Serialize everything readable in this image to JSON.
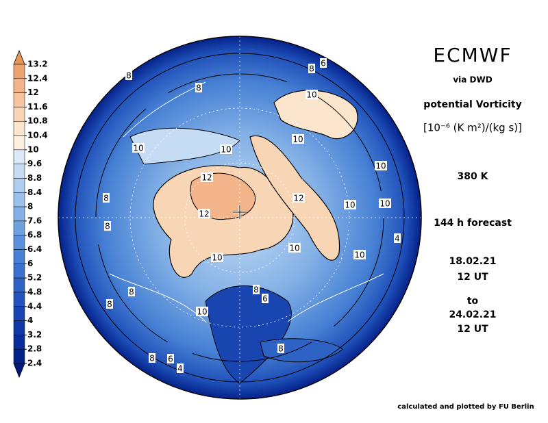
{
  "header": {
    "title": "ECMWF",
    "source": "via DWD",
    "quantity": "potential Vorticity",
    "unit": "[10⁻⁶ (K m²)/(kg s)]",
    "level": "380 K",
    "forecast": "144 h forecast",
    "start_date": "18.02.21",
    "start_time": "12 UT",
    "to": "to",
    "end_date": "24.02.21",
    "end_time": "12 UT"
  },
  "footer": {
    "credit": "calculated and plotted by FU Berlin"
  },
  "colorbar": {
    "levels": [
      13.2,
      12.4,
      12,
      11.6,
      10.8,
      10.4,
      10,
      9.6,
      8.8,
      8.4,
      8,
      7.6,
      6.8,
      6.4,
      6,
      5.2,
      4.8,
      4.4,
      4,
      3.2,
      2.8,
      2.4
    ],
    "colors": [
      "#e8955a",
      "#eda370",
      "#f2b488",
      "#f5c49e",
      "#f8d5b5",
      "#fbe6cd",
      "#fdf0e0",
      "#dbe9f8",
      "#c6dcf4",
      "#b0cef0",
      "#9ac0eb",
      "#84b1e6",
      "#6ea1e0",
      "#5a91da",
      "#4781d4",
      "#3a71cc",
      "#2e62c4",
      "#2353bb",
      "#1945b0",
      "#1038a5",
      "#082c98",
      "#04228a",
      "#021a7a"
    ]
  },
  "map_labels": [
    8,
    8,
    8,
    6,
    10,
    10,
    10,
    10,
    10,
    12,
    12,
    10,
    10,
    8,
    12,
    4,
    10,
    10,
    10,
    8,
    8,
    8,
    8,
    6,
    10,
    8,
    8,
    6,
    4
  ]
}
